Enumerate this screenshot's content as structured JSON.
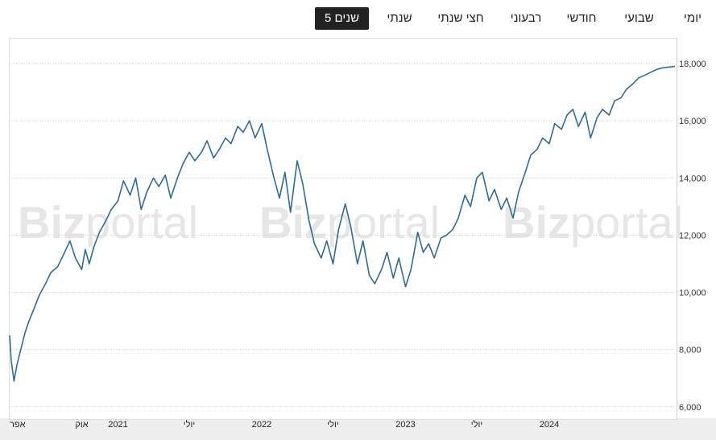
{
  "tabs": [
    {
      "label": "יומי",
      "active": false
    },
    {
      "label": "שבועי",
      "active": false
    },
    {
      "label": "חודשי",
      "active": false
    },
    {
      "label": "רבעוני",
      "active": false
    },
    {
      "label": "חצי שנתי",
      "active": false
    },
    {
      "label": "שנתי",
      "active": false
    },
    {
      "label": "5 שנים",
      "active": true
    }
  ],
  "watermark": "Bizportal",
  "colors": {
    "line": "#2f6b94",
    "grid": "#d9d9d9",
    "active_tab": "#222222",
    "axis_band": "#eeeeee"
  },
  "chart_data": {
    "type": "line",
    "x_range": [
      "2020-04-01",
      "2024-11-15"
    ],
    "ylim": [
      5600,
      18900
    ],
    "y_ticks": [
      6000,
      8000,
      10000,
      12000,
      14000,
      16000,
      18000
    ],
    "y_tick_labels": [
      "6,000",
      "8,000",
      "10,000",
      "12,000",
      "14,000",
      "16,000",
      "18,000"
    ],
    "x_ticks": [
      {
        "date": "2020-04-01",
        "label": "אפר"
      },
      {
        "date": "2020-10-01",
        "label": "אוק"
      },
      {
        "date": "2021-01-01",
        "label": "2021"
      },
      {
        "date": "2021-07-01",
        "label": "יולי"
      },
      {
        "date": "2022-01-01",
        "label": "2022"
      },
      {
        "date": "2022-07-01",
        "label": "יולי"
      },
      {
        "date": "2023-01-01",
        "label": "2023"
      },
      {
        "date": "2023-07-01",
        "label": "יולי"
      },
      {
        "date": "2024-01-01",
        "label": "2024"
      }
    ],
    "grid": true,
    "series": [
      {
        "x": [
          "2020-04-01",
          "2020-04-05",
          "2020-04-12",
          "2020-04-20",
          "2020-05-01",
          "2020-05-10",
          "2020-05-20",
          "2020-06-01",
          "2020-06-15",
          "2020-07-01",
          "2020-07-15",
          "2020-08-01",
          "2020-08-15",
          "2020-09-01",
          "2020-09-15",
          "2020-10-01",
          "2020-10-10",
          "2020-10-20",
          "2020-11-01",
          "2020-11-15",
          "2020-12-01",
          "2020-12-15",
          "2021-01-01",
          "2021-01-15",
          "2021-02-01",
          "2021-02-15",
          "2021-03-01",
          "2021-03-15",
          "2021-04-01",
          "2021-04-15",
          "2021-05-01",
          "2021-05-15",
          "2021-06-01",
          "2021-06-15",
          "2021-07-01",
          "2021-07-15",
          "2021-08-01",
          "2021-08-15",
          "2021-09-01",
          "2021-09-15",
          "2021-10-01",
          "2021-10-15",
          "2021-11-01",
          "2021-11-15",
          "2021-12-01",
          "2021-12-15",
          "2022-01-01",
          "2022-01-15",
          "2022-02-01",
          "2022-02-15",
          "2022-03-01",
          "2022-03-15",
          "2022-04-01",
          "2022-04-15",
          "2022-05-01",
          "2022-05-15",
          "2022-06-01",
          "2022-06-15",
          "2022-07-01",
          "2022-07-15",
          "2022-08-01",
          "2022-08-15",
          "2022-09-01",
          "2022-09-15",
          "2022-10-01",
          "2022-10-15",
          "2022-11-01",
          "2022-11-15",
          "2022-12-01",
          "2022-12-15",
          "2023-01-01",
          "2023-01-15",
          "2023-02-01",
          "2023-02-15",
          "2023-03-01",
          "2023-03-15",
          "2023-04-01",
          "2023-04-15",
          "2023-05-01",
          "2023-05-15",
          "2023-06-01",
          "2023-06-15",
          "2023-07-01",
          "2023-07-15",
          "2023-08-01",
          "2023-08-15",
          "2023-09-01",
          "2023-09-15",
          "2023-10-01",
          "2023-10-15",
          "2023-11-01",
          "2023-11-15",
          "2023-12-01",
          "2023-12-15",
          "2024-01-01",
          "2024-01-15",
          "2024-02-01",
          "2024-02-15",
          "2024-03-01",
          "2024-03-15",
          "2024-04-01",
          "2024-04-15",
          "2024-05-01",
          "2024-05-15",
          "2024-06-01",
          "2024-06-15",
          "2024-07-01",
          "2024-07-15",
          "2024-08-01",
          "2024-08-15",
          "2024-09-01",
          "2024-09-15",
          "2024-10-01",
          "2024-10-15",
          "2024-11-01",
          "2024-11-15"
        ],
        "values": [
          8500,
          7600,
          6900,
          7500,
          8100,
          8600,
          9000,
          9400,
          9900,
          10300,
          10700,
          10900,
          11300,
          11800,
          11200,
          10800,
          11500,
          11000,
          11600,
          12100,
          12500,
          12900,
          13200,
          13900,
          13400,
          14000,
          12900,
          13500,
          14000,
          13700,
          14100,
          13300,
          14000,
          14500,
          14900,
          14600,
          14900,
          15300,
          14700,
          15000,
          15400,
          15200,
          15800,
          15600,
          16000,
          15400,
          15900,
          15000,
          14000,
          13300,
          14200,
          12800,
          14600,
          13800,
          12500,
          11700,
          11200,
          11800,
          11000,
          12200,
          13100,
          12300,
          11000,
          11800,
          10600,
          10300,
          10800,
          11400,
          10500,
          11200,
          10200,
          10800,
          12100,
          11400,
          11700,
          11200,
          11900,
          12000,
          12200,
          12600,
          13400,
          13000,
          14000,
          14200,
          13200,
          13600,
          12900,
          13300,
          12600,
          13500,
          14200,
          14800,
          15000,
          15400,
          15200,
          15900,
          15700,
          16200,
          16400,
          15800,
          16300,
          15400,
          16100,
          16400,
          16200,
          16700,
          16800,
          17100,
          17300,
          17500,
          17600,
          17700,
          17800,
          17850,
          17880,
          17900
        ]
      }
    ]
  }
}
